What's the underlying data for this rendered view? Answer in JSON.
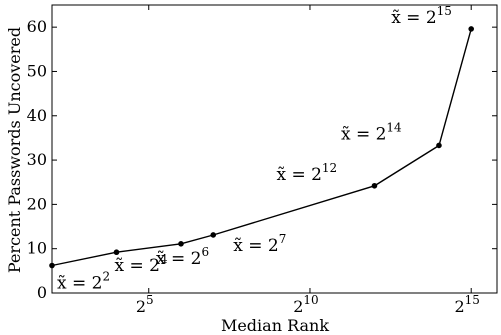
{
  "chart_data": {
    "type": "line",
    "xlabel": "Median Rank",
    "ylabel": "Percent Passwords Uncovered",
    "xscale": "log2",
    "xlim": [
      2,
      15.8
    ],
    "ylim": [
      0,
      65
    ],
    "grid": false,
    "x_ticks": [
      {
        "base": "2",
        "exp": "5",
        "value": 5
      },
      {
        "base": "2",
        "exp": "10",
        "value": 10
      },
      {
        "base": "2",
        "exp": "15",
        "value": 15
      }
    ],
    "y_ticks": [
      "0",
      "10",
      "20",
      "30",
      "40",
      "50",
      "60"
    ],
    "y_tick_values": [
      0,
      10,
      20,
      30,
      40,
      50,
      60
    ],
    "series": [
      {
        "x": [
          2,
          4,
          6,
          7,
          12,
          14,
          15
        ],
        "y": [
          6.2,
          9.2,
          11.1,
          13.1,
          24.2,
          33.3,
          59.6
        ]
      }
    ],
    "annotations": [
      {
        "prefix": "x̃ = ",
        "base": "2",
        "exp": "2",
        "x": 2,
        "y": 6.2
      },
      {
        "prefix": "x̃ = ",
        "base": "2",
        "exp": "4",
        "x": 4,
        "y": 9.2
      },
      {
        "prefix": "x̃ = ",
        "base": "2",
        "exp": "6",
        "x": 6,
        "y": 11.1
      },
      {
        "prefix": "x̃ = ",
        "base": "2",
        "exp": "7",
        "x": 7,
        "y": 13.1
      },
      {
        "prefix": "x̃ = ",
        "base": "2",
        "exp": "12",
        "x": 12,
        "y": 24.2
      },
      {
        "prefix": "x̃ = ",
        "base": "2",
        "exp": "14",
        "x": 14,
        "y": 33.3
      },
      {
        "prefix": "x̃ = ",
        "base": "2",
        "exp": "15",
        "x": 15,
        "y": 59.6
      }
    ]
  }
}
